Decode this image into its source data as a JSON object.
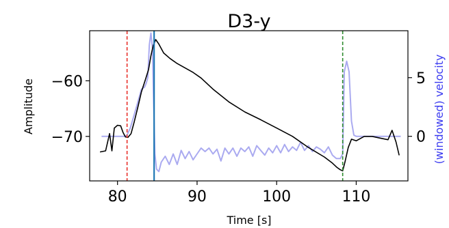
{
  "chart_data": {
    "type": "line",
    "title": "D3-y",
    "xlabel": "Time [s]",
    "ylabel": "Amplitude",
    "ylabel_right": "(windowed) velocity",
    "xlim": [
      76.5,
      116.5
    ],
    "ylim": [
      -78,
      -51
    ],
    "ylim_right": [
      -3.8,
      9.0
    ],
    "x_ticks": [
      80,
      90,
      100,
      110
    ],
    "y_ticks": [
      -60,
      -70
    ],
    "y_ticks_right": [
      5,
      0
    ],
    "grid": false,
    "series": [
      {
        "axis": "left",
        "color": "#000000",
        "points": [
          [
            77.8,
            -72.8
          ],
          [
            78.5,
            -72.6
          ],
          [
            79.0,
            -69.5
          ],
          [
            79.3,
            -72.6
          ],
          [
            79.6,
            -68.5
          ],
          [
            80.0,
            -68.0
          ],
          [
            80.4,
            -68.1
          ],
          [
            80.7,
            -69.3
          ],
          [
            81.0,
            -70.1
          ],
          [
            81.3,
            -70.2
          ],
          [
            81.7,
            -69.5
          ],
          [
            82.1,
            -67.4
          ],
          [
            82.6,
            -64.5
          ],
          [
            83.0,
            -62.0
          ],
          [
            83.5,
            -59.8
          ],
          [
            83.9,
            -58.0
          ],
          [
            84.2,
            -55.5
          ],
          [
            84.5,
            -53.6
          ],
          [
            84.8,
            -52.6
          ],
          [
            85.2,
            -53.4
          ],
          [
            85.8,
            -55.0
          ],
          [
            86.6,
            -56.0
          ],
          [
            87.5,
            -56.9
          ],
          [
            88.5,
            -57.7
          ],
          [
            89.5,
            -58.5
          ],
          [
            90.5,
            -59.5
          ],
          [
            92.0,
            -61.5
          ],
          [
            94.0,
            -63.8
          ],
          [
            96.0,
            -65.6
          ],
          [
            98.0,
            -67.0
          ],
          [
            100.0,
            -68.5
          ],
          [
            102.0,
            -70.0
          ],
          [
            104.0,
            -72.0
          ],
          [
            106.0,
            -73.7
          ],
          [
            107.0,
            -74.8
          ],
          [
            107.6,
            -75.6
          ],
          [
            108.0,
            -76.0
          ],
          [
            108.3,
            -76.2
          ],
          [
            108.6,
            -74.5
          ],
          [
            109.0,
            -72.0
          ],
          [
            109.4,
            -70.5
          ],
          [
            110.0,
            -70.8
          ],
          [
            111.0,
            -70.0
          ],
          [
            112.0,
            -70.0
          ],
          [
            113.0,
            -70.3
          ],
          [
            114.0,
            -70.6
          ],
          [
            114.5,
            -68.9
          ],
          [
            115.0,
            -71.0
          ],
          [
            115.4,
            -73.4
          ]
        ]
      },
      {
        "axis": "right",
        "color": "#aaaaf0",
        "points": [
          [
            78.0,
            0.0
          ],
          [
            80.9,
            0.0
          ],
          [
            81.2,
            0.1
          ],
          [
            81.6,
            0.7
          ],
          [
            82.0,
            1.6
          ],
          [
            82.5,
            2.8
          ],
          [
            83.0,
            4.0
          ],
          [
            83.4,
            4.2
          ],
          [
            83.6,
            4.5
          ],
          [
            83.8,
            5.0
          ],
          [
            84.0,
            7.8
          ],
          [
            84.2,
            8.8
          ],
          [
            84.4,
            7.5
          ],
          [
            84.5,
            4.0
          ],
          [
            84.7,
            -1.5
          ],
          [
            84.9,
            -2.8
          ],
          [
            85.2,
            -3.0
          ],
          [
            85.5,
            -2.2
          ],
          [
            86.0,
            -1.7
          ],
          [
            86.5,
            -2.4
          ],
          [
            87.0,
            -1.5
          ],
          [
            87.5,
            -2.4
          ],
          [
            88.0,
            -1.2
          ],
          [
            88.5,
            -1.9
          ],
          [
            89.0,
            -1.3
          ],
          [
            89.5,
            -2.0
          ],
          [
            90.0,
            -1.5
          ],
          [
            90.5,
            -1.0
          ],
          [
            91.0,
            -1.3
          ],
          [
            91.5,
            -1.0
          ],
          [
            92.0,
            -1.5
          ],
          [
            92.5,
            -1.1
          ],
          [
            93.0,
            -2.1
          ],
          [
            93.5,
            -1.0
          ],
          [
            94.0,
            -1.5
          ],
          [
            94.5,
            -1.0
          ],
          [
            95.0,
            -1.7
          ],
          [
            95.5,
            -1.0
          ],
          [
            96.0,
            -1.3
          ],
          [
            96.5,
            -0.9
          ],
          [
            97.0,
            -1.7
          ],
          [
            97.5,
            -0.8
          ],
          [
            98.0,
            -1.2
          ],
          [
            98.5,
            -1.6
          ],
          [
            99.0,
            -1.0
          ],
          [
            99.5,
            -1.4
          ],
          [
            100.0,
            -0.8
          ],
          [
            100.5,
            -1.4
          ],
          [
            101.0,
            -0.7
          ],
          [
            101.5,
            -1.3
          ],
          [
            102.0,
            -0.9
          ],
          [
            102.5,
            -1.2
          ],
          [
            103.0,
            -0.5
          ],
          [
            103.5,
            -1.2
          ],
          [
            104.0,
            -0.8
          ],
          [
            104.5,
            -1.3
          ],
          [
            105.0,
            -0.9
          ],
          [
            105.5,
            -1.1
          ],
          [
            106.0,
            -1.4
          ],
          [
            106.5,
            -0.9
          ],
          [
            107.0,
            -1.6
          ],
          [
            107.5,
            -1.9
          ],
          [
            108.0,
            -1.9
          ],
          [
            108.3,
            -1.5
          ],
          [
            108.5,
            5.5
          ],
          [
            108.8,
            6.4
          ],
          [
            109.1,
            5.5
          ],
          [
            109.4,
            1.3
          ],
          [
            109.7,
            0.1
          ],
          [
            110.0,
            0.0
          ],
          [
            115.6,
            0.0
          ]
        ]
      }
    ],
    "vertical_lines": [
      {
        "x": 81.2,
        "color": "#e8302a",
        "style": "dashed"
      },
      {
        "x": 84.6,
        "color": "#1f77b4",
        "style": "solid"
      },
      {
        "x": 108.3,
        "color": "#2e8b2e",
        "style": "dashed"
      }
    ],
    "right_axis_color": "#3c3cf0"
  }
}
